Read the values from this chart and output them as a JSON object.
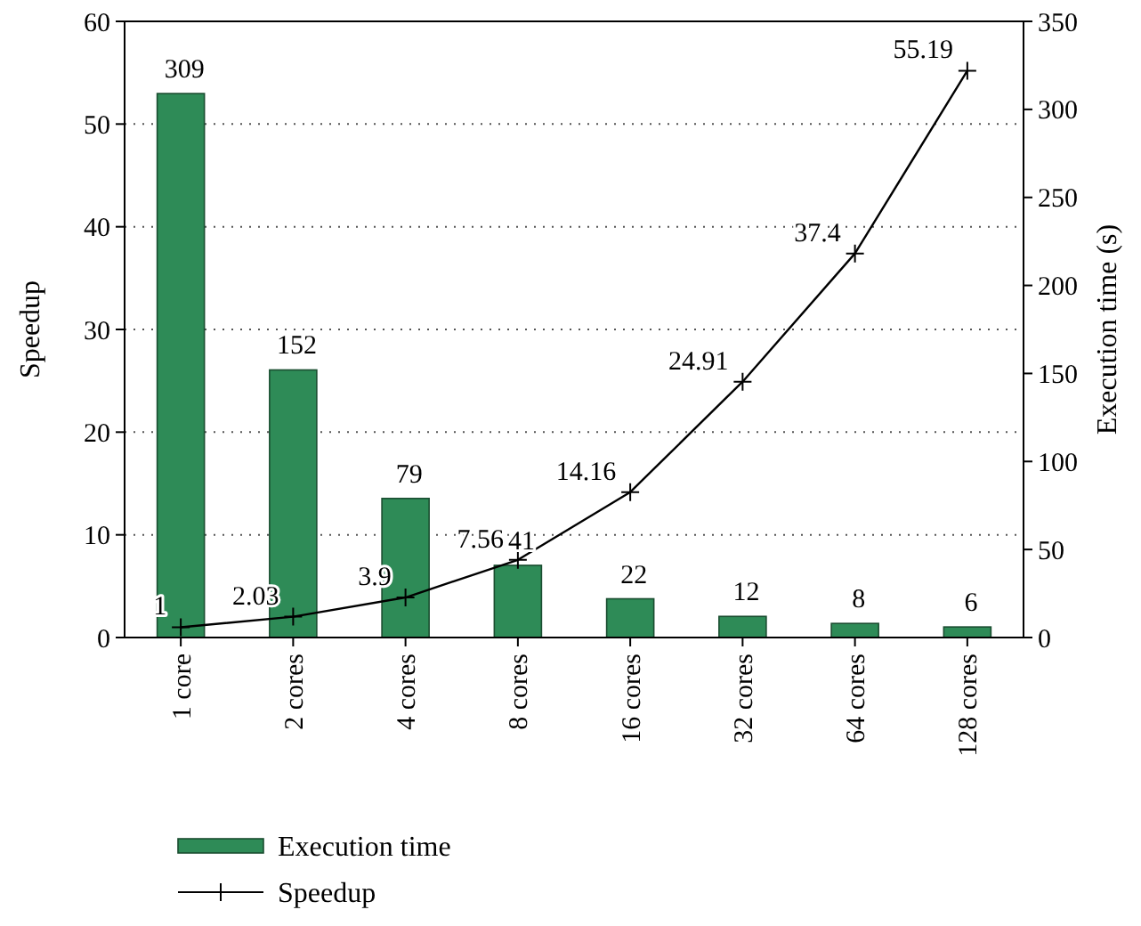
{
  "chart_data": {
    "type": "bar",
    "categories": [
      "1 core",
      "2 cores",
      "4 cores",
      "8 cores",
      "16 cores",
      "32 cores",
      "64 cores",
      "128 cores"
    ],
    "series": [
      {
        "name": "Execution time",
        "axis": "y2",
        "color": "#2e8b57",
        "values": [
          309,
          152,
          79,
          41,
          22,
          12,
          8,
          6
        ]
      },
      {
        "name": "Speedup",
        "type": "line",
        "axis": "y",
        "color": "#000000",
        "values": [
          1,
          2.03,
          3.9,
          7.56,
          14.16,
          24.91,
          37.4,
          55.19
        ]
      }
    ],
    "ylabel": "Speedup",
    "y2label": "Execution time (s)",
    "ylim": [
      0,
      60
    ],
    "yticks": [
      0,
      10,
      20,
      30,
      40,
      50,
      60
    ],
    "y2lim": [
      0,
      350
    ],
    "y2ticks": [
      0,
      50,
      100,
      150,
      200,
      250,
      300,
      350
    ],
    "grid": "y",
    "legend": "bottom",
    "marker": "cross",
    "line_style": "solid",
    "data_labels": true
  }
}
